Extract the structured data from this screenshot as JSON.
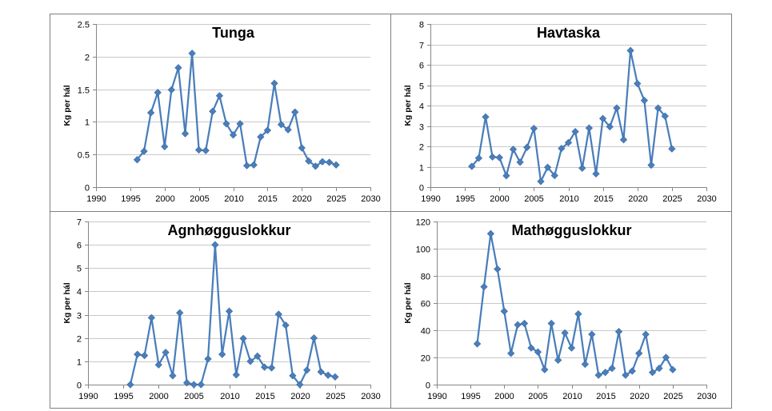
{
  "colors": {
    "series": "#4a7ebb",
    "marker": "#4a7ebb",
    "grid": "#c8c8c8",
    "frame": "#7f7f7f",
    "axis": "#868686"
  },
  "chart_data": [
    {
      "type": "line",
      "title": "Tunga",
      "xlabel": "",
      "ylabel": "Kg per hál",
      "xlim": [
        1990,
        2030
      ],
      "ylim": [
        0,
        2.5
      ],
      "xticks": [
        1990,
        1995,
        2000,
        2005,
        2010,
        2015,
        2020,
        2025,
        2030
      ],
      "yticks": [
        0,
        0.5,
        1,
        1.5,
        2,
        2.5
      ],
      "ytick_labels": [
        "0",
        "0.5",
        "1",
        "1.5",
        "2",
        "2.5"
      ],
      "grid": "horizontal",
      "legend": "none",
      "series": [
        {
          "x": [
            1996,
            1997,
            1998,
            1999,
            2000,
            2001,
            2002,
            2003,
            2004,
            2005,
            2006,
            2007,
            2008,
            2009,
            2010,
            2011,
            2012,
            2013,
            2014,
            2015,
            2016,
            2017,
            2018,
            2019,
            2020,
            2021,
            2022,
            2023,
            2024,
            2025
          ],
          "y": [
            0.42,
            0.55,
            1.14,
            1.45,
            0.62,
            1.49,
            1.83,
            0.82,
            2.05,
            0.57,
            0.56,
            1.16,
            1.4,
            0.97,
            0.8,
            0.97,
            0.33,
            0.34,
            0.77,
            0.87,
            1.59,
            0.96,
            0.88,
            1.15,
            0.6,
            0.4,
            0.32,
            0.39,
            0.38,
            0.34
          ]
        }
      ]
    },
    {
      "type": "line",
      "title": "Havtaska",
      "xlabel": "",
      "ylabel": "Kg per hál",
      "xlim": [
        1990,
        2030
      ],
      "ylim": [
        0,
        8
      ],
      "xticks": [
        1990,
        1995,
        2000,
        2005,
        2010,
        2015,
        2020,
        2025,
        2030
      ],
      "yticks": [
        0,
        1,
        2,
        3,
        4,
        5,
        6,
        7,
        8
      ],
      "ytick_labels": [
        "0",
        "1",
        "2",
        "3",
        "4",
        "5",
        "6",
        "7",
        "8"
      ],
      "grid": "horizontal",
      "legend": "none",
      "series": [
        {
          "x": [
            1996,
            1997,
            1998,
            1999,
            2000,
            2001,
            2002,
            2003,
            2004,
            2005,
            2006,
            2007,
            2008,
            2009,
            2010,
            2011,
            2012,
            2013,
            2014,
            2015,
            2016,
            2017,
            2018,
            2019,
            2020,
            2021,
            2022,
            2023,
            2024,
            2025
          ],
          "y": [
            1.02,
            1.42,
            3.44,
            1.48,
            1.45,
            0.56,
            1.85,
            1.22,
            1.95,
            2.88,
            0.28,
            0.97,
            0.57,
            1.9,
            2.18,
            2.72,
            0.93,
            2.9,
            0.65,
            3.36,
            2.96,
            3.88,
            2.32,
            6.7,
            5.08,
            4.25,
            1.08,
            3.88,
            3.48,
            1.88
          ]
        }
      ]
    },
    {
      "type": "line",
      "title": "Agnhøgguslokkur",
      "xlabel": "",
      "ylabel": "Kg per hál",
      "xlim": [
        1990,
        2030
      ],
      "ylim": [
        0,
        7
      ],
      "xticks": [
        1990,
        1995,
        2000,
        2005,
        2010,
        2015,
        2020,
        2025,
        2030
      ],
      "yticks": [
        0,
        1,
        2,
        3,
        4,
        5,
        6,
        7
      ],
      "ytick_labels": [
        "0",
        "1",
        "2",
        "3",
        "4",
        "5",
        "6",
        "7"
      ],
      "grid": "horizontal",
      "legend": "none",
      "series": [
        {
          "x": [
            1996,
            1997,
            1998,
            1999,
            2000,
            2001,
            2002,
            2003,
            2004,
            2005,
            2006,
            2007,
            2008,
            2009,
            2010,
            2011,
            2012,
            2013,
            2014,
            2015,
            2016,
            2017,
            2018,
            2019,
            2020,
            2021,
            2022,
            2023,
            2024,
            2025
          ],
          "y": [
            0.0,
            1.3,
            1.25,
            2.87,
            0.85,
            1.38,
            0.38,
            3.08,
            0.08,
            0.0,
            0.0,
            1.1,
            6.0,
            1.3,
            3.15,
            0.42,
            1.98,
            1.0,
            1.22,
            0.75,
            0.72,
            3.02,
            2.55,
            0.38,
            0.0,
            0.62,
            2.0,
            0.55,
            0.4,
            0.33
          ]
        }
      ]
    },
    {
      "type": "line",
      "title": "Mathøgguslokkur",
      "xlabel": "",
      "ylabel": "Kg per hál",
      "xlim": [
        1990,
        2030
      ],
      "ylim": [
        0,
        120
      ],
      "xticks": [
        1990,
        1995,
        2000,
        2005,
        2010,
        2015,
        2020,
        2025,
        2030
      ],
      "yticks": [
        0,
        20,
        40,
        60,
        80,
        100,
        120
      ],
      "ytick_labels": [
        "0",
        "20",
        "40",
        "60",
        "80",
        "100",
        "120"
      ],
      "grid": "horizontal",
      "legend": "none",
      "series": [
        {
          "x": [
            1996,
            1997,
            1998,
            1999,
            2000,
            2001,
            2002,
            2003,
            2004,
            2005,
            2006,
            2007,
            2008,
            2009,
            2010,
            2011,
            2012,
            2013,
            2014,
            2015,
            2016,
            2017,
            2018,
            2019,
            2020,
            2021,
            2022,
            2023,
            2024,
            2025
          ],
          "y": [
            30,
            72,
            111,
            85,
            54,
            23,
            44,
            45,
            27,
            24,
            11,
            45,
            18,
            38,
            27,
            52,
            15,
            37,
            7,
            9,
            12,
            39,
            7,
            10,
            23,
            37,
            9,
            12,
            20,
            11
          ]
        }
      ]
    }
  ]
}
